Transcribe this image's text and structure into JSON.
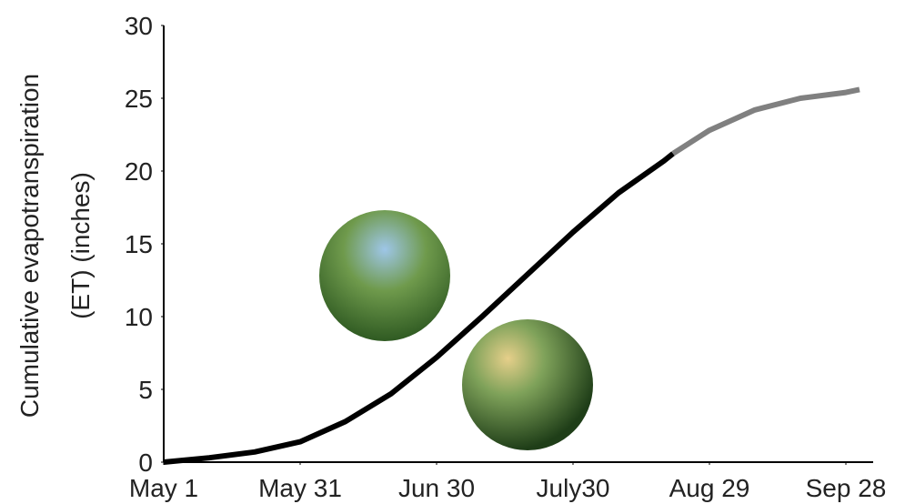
{
  "chart_data": {
    "type": "line",
    "y_label": [
      "Cumulative evapotranspiration",
      "(ET) (inches)"
    ],
    "xlim": [
      0,
      156
    ],
    "xticks": [
      {
        "value": 0,
        "label": "May 1"
      },
      {
        "value": 30,
        "label": "May 31"
      },
      {
        "value": 60,
        "label": "Jun 30"
      },
      {
        "value": 90,
        "label": "July30"
      },
      {
        "value": 120,
        "label": "Aug 29"
      },
      {
        "value": 150,
        "label": "Sep 28"
      }
    ],
    "ylim": [
      0,
      30
    ],
    "yticks": [
      0,
      5,
      10,
      15,
      20,
      25,
      30
    ],
    "grid": false,
    "series": [
      {
        "color": "#000000",
        "x": [
          0,
          10,
          20,
          30,
          40,
          50,
          60,
          70,
          80,
          90,
          100,
          110,
          112
        ],
        "values": [
          0,
          0.3,
          0.7,
          1.4,
          2.8,
          4.7,
          7.2,
          10,
          12.9,
          15.8,
          18.5,
          20.7,
          21.2
        ]
      },
      {
        "color": "#808080",
        "x": [
          112,
          120,
          130,
          140,
          150,
          153
        ],
        "values": [
          21.2,
          22.8,
          24.2,
          25.0,
          25.4,
          25.6
        ]
      }
    ]
  }
}
